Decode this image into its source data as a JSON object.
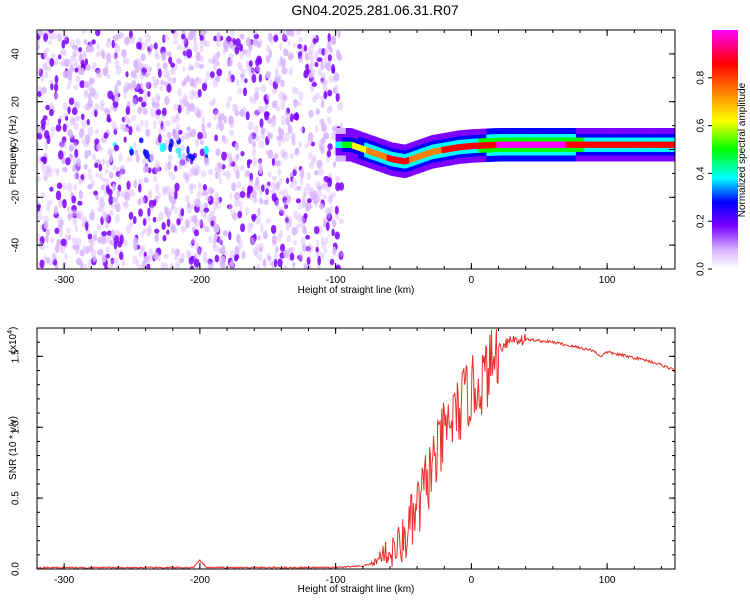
{
  "title": "GN04.2025.281.06.31.R07",
  "chart_data": [
    {
      "type": "heatmap",
      "xlabel": "Height of straight line (km)",
      "ylabel": "Frequency (Hz)",
      "xlim": [
        -320,
        150
      ],
      "ylim": [
        -50,
        50
      ],
      "x_ticks": [
        -300,
        -200,
        -100,
        0,
        100
      ],
      "y_ticks": [
        -40,
        -20,
        0,
        20,
        40
      ],
      "colorbar": {
        "label": "Normalized spectral amplitude",
        "range": [
          0,
          1
        ],
        "ticks": [
          0.0,
          0.2,
          0.4,
          0.6,
          0.8
        ],
        "tick_labels": [
          "0.0",
          "0.2",
          "0.4",
          "0.6",
          "0.8"
        ],
        "colors": [
          "#ffffff",
          "#d8b4ff",
          "#7b00ff",
          "#0000ff",
          "#00ffff",
          "#00ff00",
          "#ffff00",
          "#ff8000",
          "#ff0000",
          "#ff00ff"
        ]
      },
      "noise_region_x": [
        -320,
        -95
      ],
      "signal_track": [
        {
          "x": -100,
          "y": 2,
          "amp": 0.45
        },
        {
          "x": -90,
          "y": 2,
          "amp": 0.6
        },
        {
          "x": -80,
          "y": 0,
          "amp": 0.7
        },
        {
          "x": -70,
          "y": -2,
          "amp": 0.8
        },
        {
          "x": -60,
          "y": -4,
          "amp": 0.85
        },
        {
          "x": -50,
          "y": -5,
          "amp": 0.85
        },
        {
          "x": -40,
          "y": -3,
          "amp": 0.8
        },
        {
          "x": -30,
          "y": -1,
          "amp": 0.8
        },
        {
          "x": -20,
          "y": 0,
          "amp": 0.85
        },
        {
          "x": -10,
          "y": 1,
          "amp": 0.85
        },
        {
          "x": 0,
          "y": 1.5,
          "amp": 0.9
        },
        {
          "x": 20,
          "y": 2,
          "amp": 0.95
        },
        {
          "x": 50,
          "y": 2,
          "amp": 1.0
        },
        {
          "x": 85,
          "y": 2,
          "amp": 0.9
        },
        {
          "x": 110,
          "y": 2,
          "amp": 0.85
        },
        {
          "x": 150,
          "y": 2,
          "amp": 0.85
        }
      ]
    },
    {
      "type": "line",
      "xlabel": "Height of straight line (km)",
      "ylabel": "SNR (10 * v/v)",
      "multiplier_label": "(x10",
      "multiplier_exp": "4",
      "xlim": [
        -320,
        150
      ],
      "ylim": [
        0,
        1.7
      ],
      "x_ticks": [
        -300,
        -200,
        -100,
        0,
        100
      ],
      "y_ticks": [
        0.0,
        0.5,
        1.0,
        1.5
      ],
      "y_tick_labels": [
        "0.0",
        "0.5",
        "1.0",
        "1.5"
      ],
      "color": "#e8302c",
      "series": [
        {
          "x": [
            -320,
            -300,
            -250,
            -205,
            -200,
            -195,
            -150,
            -100,
            -80,
            -70,
            -65,
            -60,
            -55,
            -50,
            -45,
            -40,
            -35,
            -30,
            -25,
            -20,
            -15,
            -10,
            -5,
            0,
            5,
            10,
            15,
            20,
            25,
            30,
            40,
            50,
            60,
            70,
            80,
            90,
            95,
            100,
            110,
            120,
            130,
            140,
            150
          ],
          "y": [
            0.01,
            0.01,
            0.01,
            0.01,
            0.06,
            0.01,
            0.01,
            0.01,
            0.02,
            0.05,
            0.12,
            0.1,
            0.15,
            0.2,
            0.3,
            0.4,
            0.55,
            0.7,
            0.8,
            0.95,
            1.05,
            1.1,
            1.2,
            1.25,
            1.3,
            1.35,
            1.45,
            1.55,
            1.6,
            1.62,
            1.62,
            1.61,
            1.6,
            1.58,
            1.56,
            1.54,
            1.5,
            1.53,
            1.51,
            1.49,
            1.47,
            1.44,
            1.4
          ]
        }
      ]
    }
  ]
}
